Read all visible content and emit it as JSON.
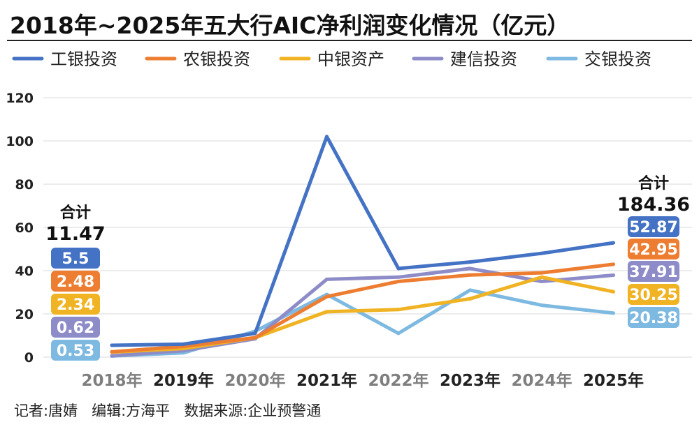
{
  "chart_data": {
    "type": "line",
    "title": "2018年~2025年五大行AIC净利润变化情况（亿元）",
    "xlabel": "",
    "ylabel": "",
    "categories": [
      "2018年",
      "2019年",
      "2020年",
      "2021年",
      "2022年",
      "2023年",
      "2024年",
      "2025年"
    ],
    "ylim": [
      0,
      120
    ],
    "yticks": [
      0,
      20,
      40,
      60,
      80,
      100,
      120
    ],
    "grid": true,
    "legend_position": "top",
    "series": [
      {
        "name": "工银投资",
        "color": "#4472c4",
        "values": [
          5.5,
          6,
          11,
          102,
          41,
          44,
          48,
          52.87
        ]
      },
      {
        "name": "农银投资",
        "color": "#ed7d31",
        "values": [
          2.48,
          5,
          9,
          28,
          35,
          38,
          39,
          42.95
        ]
      },
      {
        "name": "中银资产",
        "color": "#f0b323",
        "values": [
          2.34,
          4,
          9,
          21,
          22,
          27,
          37,
          30.25
        ]
      },
      {
        "name": "建信投资",
        "color": "#8e8cc8",
        "values": [
          0.62,
          3,
          8.5,
          36,
          37,
          41,
          35,
          37.91
        ]
      },
      {
        "name": "交银投资",
        "color": "#7db9e0",
        "values": [
          0.53,
          2,
          12,
          29,
          11,
          31,
          24,
          20.38
        ]
      }
    ],
    "annotations": {
      "start": {
        "label": "合计",
        "total": "11.47",
        "values": [
          "5.5",
          "2.48",
          "2.34",
          "0.62",
          "0.53"
        ]
      },
      "end": {
        "label": "合计",
        "total": "184.36",
        "values": [
          "52.87",
          "42.95",
          "37.91",
          "30.25",
          "20.38"
        ]
      }
    },
    "tick_colors": [
      "#7f7f7f",
      "#222222"
    ]
  },
  "footer": "记者:唐婧   编辑:方海平   数据来源:企业预警通"
}
